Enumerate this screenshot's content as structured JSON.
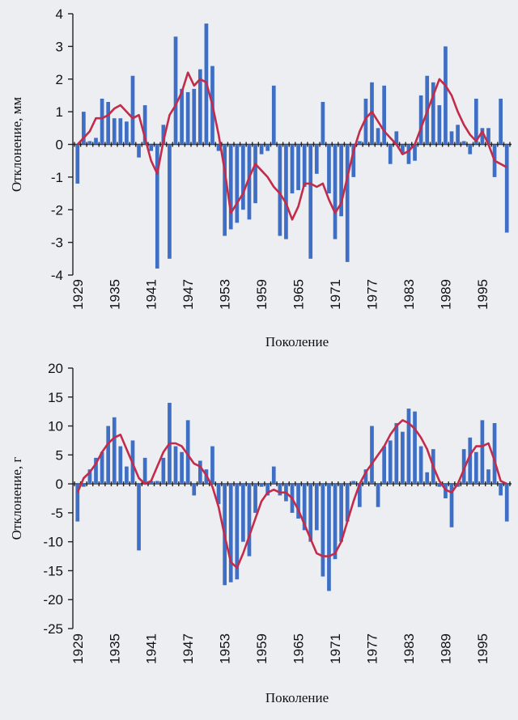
{
  "chart_data": [
    {
      "type": "bar",
      "ylabel": "Отклонение, мм",
      "xlabel": "Поколение",
      "ylim": [
        -4,
        4
      ],
      "yticks": [
        "4",
        "3",
        "2",
        "1",
        "0",
        "-1",
        "-2",
        "-3",
        "-4"
      ],
      "xtick_labels": [
        "1929",
        "1935",
        "1941",
        "1947",
        "1953",
        "1959",
        "1965",
        "1971",
        "1977",
        "1983",
        "1989",
        "1995"
      ],
      "years": [
        1929,
        1930,
        1931,
        1932,
        1933,
        1934,
        1935,
        1936,
        1937,
        1938,
        1939,
        1940,
        1941,
        1942,
        1943,
        1944,
        1945,
        1946,
        1947,
        1948,
        1949,
        1950,
        1951,
        1952,
        1953,
        1954,
        1955,
        1956,
        1957,
        1958,
        1959,
        1960,
        1961,
        1962,
        1963,
        1964,
        1965,
        1966,
        1967,
        1968,
        1969,
        1970,
        1971,
        1972,
        1973,
        1974,
        1975,
        1976,
        1977,
        1978,
        1979,
        1980,
        1981,
        1982,
        1983,
        1984,
        1985,
        1986,
        1987,
        1988,
        1989,
        1990,
        1991,
        1992,
        1993,
        1994,
        1995,
        1996,
        1997,
        1998,
        1999
      ],
      "series": [
        {
          "values": [
            -1.2,
            1.0,
            0.1,
            0.2,
            1.4,
            1.3,
            0.8,
            0.8,
            0.7,
            2.1,
            -0.4,
            1.2,
            -0.2,
            -3.8,
            0.6,
            -3.5,
            3.3,
            1.7,
            1.6,
            1.7,
            2.3,
            3.7,
            2.4,
            -0.2,
            -2.8,
            -2.6,
            -2.4,
            -2.0,
            -2.3,
            -1.8,
            -0.3,
            -0.2,
            1.8,
            -2.8,
            -2.9,
            -1.5,
            -1.4,
            -1.3,
            -3.5,
            -0.9,
            1.3,
            -1.5,
            -2.9,
            -2.2,
            -3.6,
            -1.0,
            0.1,
            1.4,
            1.9,
            0.5,
            1.8,
            -0.6,
            0.4,
            -0.3,
            -0.6,
            -0.5,
            1.5,
            2.1,
            1.9,
            1.2,
            3.0,
            0.4,
            0.6,
            0.1,
            -0.3,
            1.4,
            0.5,
            0.5,
            -1.0,
            1.4,
            -2.7
          ]
        },
        {
          "values": [
            0.0,
            0.2,
            0.4,
            0.8,
            0.8,
            0.9,
            1.1,
            1.2,
            1.0,
            0.8,
            0.9,
            0.2,
            -0.5,
            -0.9,
            0.1,
            0.9,
            1.2,
            1.6,
            2.2,
            1.8,
            2.0,
            1.9,
            1.2,
            0.3,
            -0.8,
            -2.1,
            -1.8,
            -1.5,
            -1.0,
            -0.6,
            -0.8,
            -1.0,
            -1.3,
            -1.5,
            -1.8,
            -2.3,
            -1.9,
            -1.2,
            -1.2,
            -1.3,
            -1.2,
            -1.7,
            -2.1,
            -1.8,
            -1.0,
            -0.2,
            0.4,
            0.8,
            1.0,
            0.7,
            0.4,
            0.2,
            0.0,
            -0.3,
            -0.2,
            0.0,
            0.5,
            1.0,
            1.5,
            2.0,
            1.8,
            1.5,
            1.0,
            0.6,
            0.3,
            0.1,
            0.4,
            0.0,
            -0.5,
            -0.6,
            -0.7
          ]
        }
      ]
    },
    {
      "type": "bar",
      "ylabel": "Отклонение, г",
      "xlabel": "Поколение",
      "ylim": [
        -25,
        20
      ],
      "yticks": [
        "20",
        "15",
        "10",
        "5",
        "0",
        "-5",
        "-10",
        "-15",
        "-20",
        "-25"
      ],
      "xtick_labels": [
        "1929",
        "1935",
        "1941",
        "1947",
        "1953",
        "1959",
        "1965",
        "1971",
        "1977",
        "1983",
        "1989",
        "1995"
      ],
      "years": [
        1929,
        1930,
        1931,
        1932,
        1933,
        1934,
        1935,
        1936,
        1937,
        1938,
        1939,
        1940,
        1941,
        1942,
        1943,
        1944,
        1945,
        1946,
        1947,
        1948,
        1949,
        1950,
        1951,
        1952,
        1953,
        1954,
        1955,
        1956,
        1957,
        1958,
        1959,
        1960,
        1961,
        1962,
        1963,
        1964,
        1965,
        1966,
        1967,
        1968,
        1969,
        1970,
        1971,
        1972,
        1973,
        1974,
        1975,
        1976,
        1977,
        1978,
        1979,
        1980,
        1981,
        1982,
        1983,
        1984,
        1985,
        1986,
        1987,
        1988,
        1989,
        1990,
        1991,
        1992,
        1993,
        1994,
        1995,
        1996,
        1997,
        1998,
        1999
      ],
      "series": [
        {
          "values": [
            -6.5,
            -0.5,
            2.5,
            4.5,
            5.5,
            10.0,
            11.5,
            6.5,
            3.0,
            7.5,
            -11.5,
            4.5,
            0.5,
            0.5,
            4.5,
            14.0,
            6.5,
            5.5,
            11.0,
            -2.0,
            4.0,
            2.5,
            6.5,
            -3.5,
            -17.5,
            -17.0,
            -16.5,
            -10.0,
            -12.5,
            -5.0,
            -0.5,
            -2.0,
            3.0,
            -2.0,
            -3.0,
            -5.0,
            -6.0,
            -8.0,
            -10.0,
            -8.0,
            -16.0,
            -18.5,
            -13.0,
            -10.0,
            -6.5,
            0.5,
            -4.0,
            2.5,
            10.0,
            -4.0,
            6.5,
            7.5,
            10.5,
            9.0,
            13.0,
            12.5,
            6.5,
            2.0,
            6.0,
            -0.5,
            -2.5,
            -7.5,
            -0.5,
            6.0,
            8.0,
            5.5,
            11.0,
            2.5,
            10.5,
            -2.0,
            -6.5
          ]
        },
        {
          "values": [
            -1.5,
            1.0,
            2.0,
            3.5,
            5.5,
            7.0,
            8.0,
            8.5,
            6.0,
            3.5,
            1.0,
            0.0,
            0.5,
            3.0,
            5.5,
            7.0,
            7.0,
            6.5,
            5.0,
            3.5,
            3.0,
            1.5,
            -0.5,
            -4.0,
            -9.0,
            -13.5,
            -14.5,
            -12.0,
            -9.0,
            -6.0,
            -3.0,
            -1.5,
            -1.0,
            -1.5,
            -1.5,
            -2.5,
            -4.5,
            -7.0,
            -9.5,
            -12.0,
            -12.5,
            -12.5,
            -12.0,
            -10.0,
            -6.5,
            -3.0,
            0.0,
            2.0,
            3.5,
            5.0,
            6.5,
            8.5,
            10.0,
            11.0,
            10.5,
            9.5,
            8.0,
            6.0,
            3.0,
            0.5,
            -1.0,
            -1.5,
            0.0,
            2.5,
            5.0,
            6.5,
            6.5,
            7.0,
            4.0,
            0.5,
            0.0
          ]
        }
      ]
    }
  ]
}
